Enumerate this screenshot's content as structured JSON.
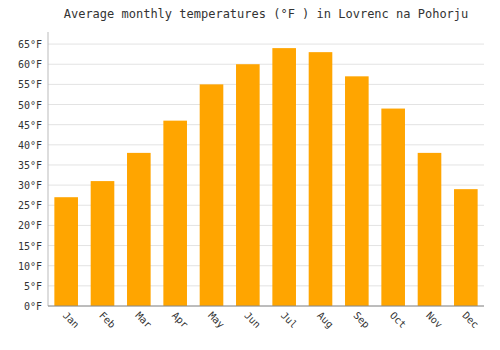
{
  "chart_data": {
    "type": "bar",
    "title": "Average monthly temperatures (°F ) in Lovrenc na Pohorju",
    "categories": [
      "Jan",
      "Feb",
      "Mar",
      "Apr",
      "May",
      "Jun",
      "Jul",
      "Aug",
      "Sep",
      "Oct",
      "Nov",
      "Dec"
    ],
    "values": [
      27,
      31,
      38,
      46,
      55,
      60,
      64,
      63,
      57,
      49,
      38,
      29
    ],
    "color": "#FFA500",
    "ylim": [
      0,
      68
    ],
    "yticks": [
      {
        "value": 0,
        "label": "0°F"
      },
      {
        "value": 5,
        "label": "5°F"
      },
      {
        "value": 10,
        "label": "10°F"
      },
      {
        "value": 15,
        "label": "15°F"
      },
      {
        "value": 20,
        "label": "20°F"
      },
      {
        "value": 25,
        "label": "25°F"
      },
      {
        "value": 30,
        "label": "30°F"
      },
      {
        "value": 35,
        "label": "35°F"
      },
      {
        "value": 40,
        "label": "40°F"
      },
      {
        "value": 45,
        "label": "45°F"
      },
      {
        "value": 50,
        "label": "50°F"
      },
      {
        "value": 55,
        "label": "55°F"
      },
      {
        "value": 60,
        "label": "60°F"
      },
      {
        "value": 65,
        "label": "65°F"
      }
    ],
    "grid": true
  }
}
